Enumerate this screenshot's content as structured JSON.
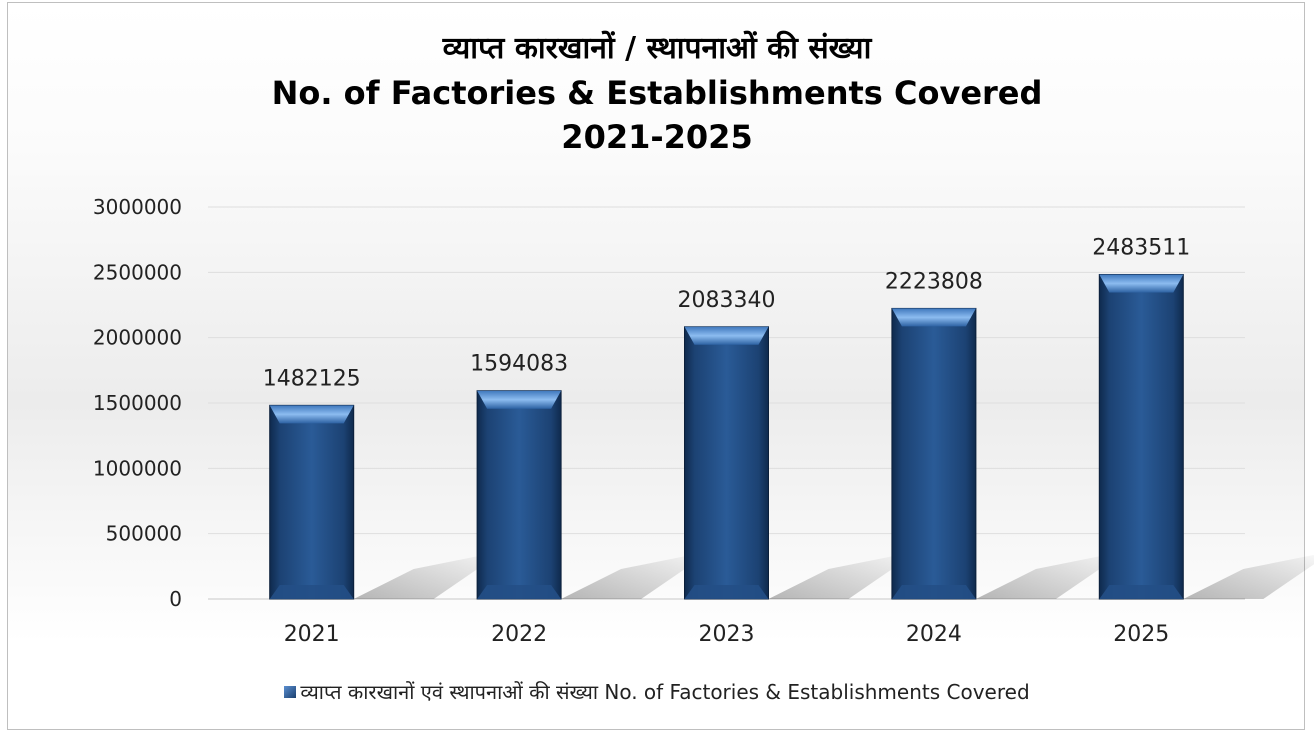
{
  "chart_data": {
    "type": "bar",
    "title_hindi": "व्याप्त कारखानों / स्थापनाओं की संख्या",
    "title": "No. of Factories & Establishments Covered",
    "subtitle": "2021-2025",
    "categories": [
      "2021",
      "2022",
      "2023",
      "2024",
      "2025"
    ],
    "series": [
      {
        "name": "व्याप्त कारखानों एवं स्थापनाओं की संख्या  No. of Factories & Establishments Covered",
        "values": [
          1482125,
          1594083,
          2083340,
          2223808,
          2483511
        ]
      }
    ],
    "data_labels": [
      "1482125",
      "1594083",
      "2083340",
      "2223808",
      "2483511"
    ],
    "y_ticks": [
      "0",
      "500000",
      "1000000",
      "1500000",
      "2000000",
      "2500000",
      "3000000"
    ],
    "ylim": [
      0,
      3000000
    ],
    "grid": true,
    "legend_position": "bottom",
    "bar_color": "#1f4e8c",
    "bar_highlight": "#7fb2ea"
  }
}
